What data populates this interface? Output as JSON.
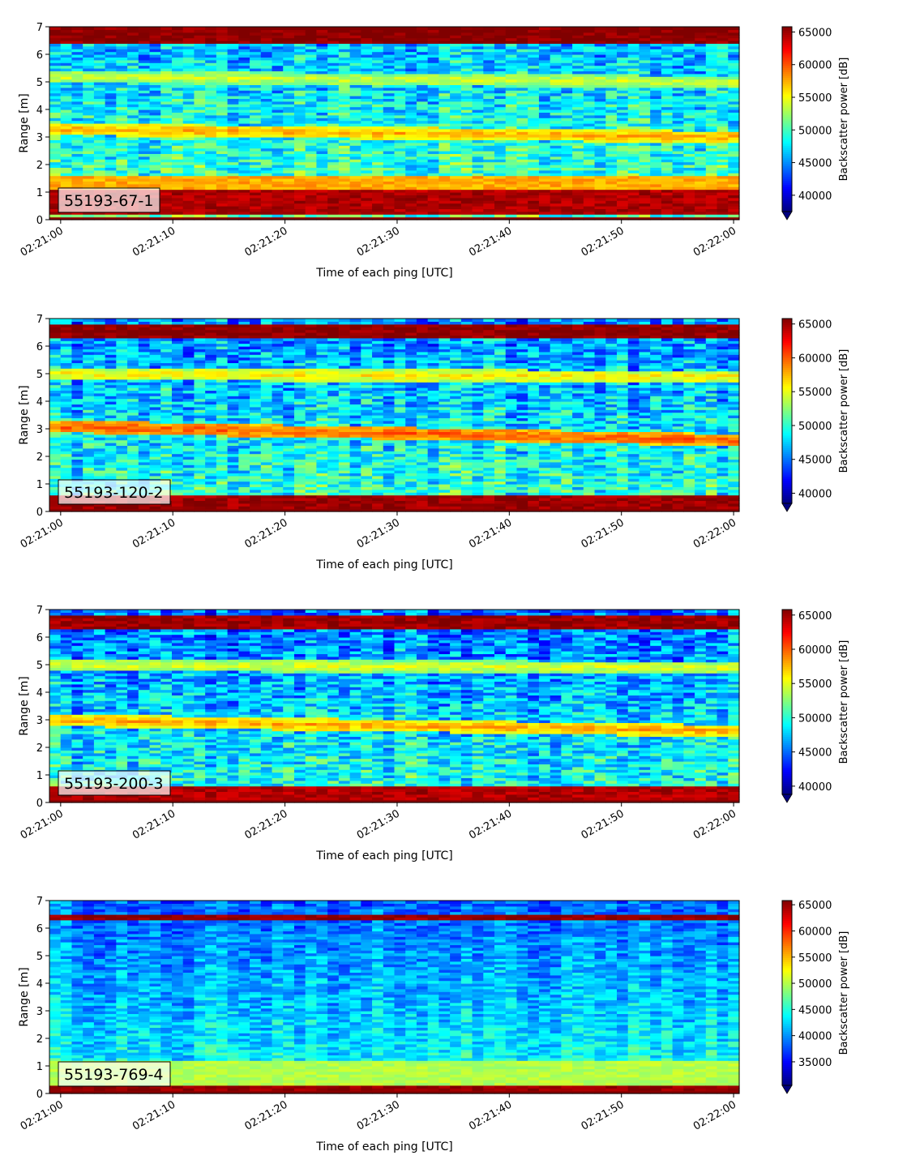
{
  "chart_data": [
    {
      "type": "heatmap",
      "tag": "55193-67-1",
      "xlabel": "Time of each ping [UTC]",
      "ylabel": "Range [m]",
      "x_ticks": [
        "02:21:00",
        "02:21:10",
        "02:21:20",
        "02:21:30",
        "02:21:40",
        "02:21:50",
        "02:22:00"
      ],
      "x_range_seconds": [
        -1,
        60.5
      ],
      "y_ticks": [
        0,
        1,
        2,
        3,
        4,
        5,
        6,
        7
      ],
      "ylim": [
        0,
        7
      ],
      "colorbar": {
        "label": "Backscatter power [dB]",
        "ticks": [
          40000,
          45000,
          50000,
          55000,
          60000,
          65000
        ],
        "range": [
          37500,
          65800
        ],
        "extend": "min"
      },
      "colormap": "jet",
      "features": [
        {
          "kind": "band",
          "range_m": [
            0.25,
            1.1
          ],
          "value": 64500
        },
        {
          "kind": "band",
          "range_m": [
            1.1,
            1.6
          ],
          "value": 57500
        },
        {
          "kind": "band",
          "range_m": [
            6.4,
            7.0
          ],
          "value": 65500
        },
        {
          "kind": "layer",
          "range_m_start": 3.3,
          "range_m_end": 3.0,
          "value": 57500
        },
        {
          "kind": "layer",
          "range_m_start": 5.2,
          "range_m_end": 5.0,
          "value": 54000
        }
      ]
    },
    {
      "type": "heatmap",
      "tag": "55193-120-2",
      "xlabel": "Time of each ping [UTC]",
      "ylabel": "Range [m]",
      "x_ticks": [
        "02:21:00",
        "02:21:10",
        "02:21:20",
        "02:21:30",
        "02:21:40",
        "02:21:50",
        "02:22:00"
      ],
      "x_range_seconds": [
        -1,
        60.5
      ],
      "y_ticks": [
        0,
        1,
        2,
        3,
        4,
        5,
        6,
        7
      ],
      "ylim": [
        0,
        7
      ],
      "colorbar": {
        "label": "Backscatter power [dB]",
        "ticks": [
          40000,
          45000,
          50000,
          55000,
          60000,
          65000
        ],
        "range": [
          38500,
          65800
        ],
        "extend": "min"
      },
      "colormap": "jet",
      "features": [
        {
          "kind": "band",
          "range_m": [
            0.15,
            0.6
          ],
          "value": 65000
        },
        {
          "kind": "band",
          "range_m": [
            6.3,
            6.8
          ],
          "value": 65500
        },
        {
          "kind": "layer",
          "range_m_start": 3.1,
          "range_m_end": 2.6,
          "value": 60000
        },
        {
          "kind": "layer",
          "range_m_start": 5.0,
          "range_m_end": 4.9,
          "value": 56000
        }
      ]
    },
    {
      "type": "heatmap",
      "tag": "55193-200-3",
      "xlabel": "Time of each ping [UTC]",
      "ylabel": "Range [m]",
      "x_ticks": [
        "02:21:00",
        "02:21:10",
        "02:21:20",
        "02:21:30",
        "02:21:40",
        "02:21:50",
        "02:22:00"
      ],
      "x_range_seconds": [
        -1,
        60.5
      ],
      "y_ticks": [
        0,
        1,
        2,
        3,
        4,
        5,
        6,
        7
      ],
      "ylim": [
        0,
        7
      ],
      "colorbar": {
        "label": "Backscatter power [dB]",
        "ticks": [
          40000,
          45000,
          50000,
          55000,
          60000,
          65000
        ],
        "range": [
          38800,
          65800
        ],
        "extend": "min"
      },
      "colormap": "jet",
      "features": [
        {
          "kind": "band",
          "range_m": [
            0.15,
            0.55
          ],
          "value": 64500
        },
        {
          "kind": "band",
          "range_m": [
            6.3,
            6.8
          ],
          "value": 65000
        },
        {
          "kind": "layer",
          "range_m_start": 3.0,
          "range_m_end": 2.6,
          "value": 58000
        },
        {
          "kind": "layer",
          "range_m_start": 5.0,
          "range_m_end": 4.9,
          "value": 55000
        }
      ]
    },
    {
      "type": "heatmap",
      "tag": "55193-769-4",
      "xlabel": "Time of each ping [UTC]",
      "ylabel": "Range [m]",
      "x_ticks": [
        "02:21:00",
        "02:21:10",
        "02:21:20",
        "02:21:30",
        "02:21:40",
        "02:21:50",
        "02:22:00"
      ],
      "x_range_seconds": [
        -1,
        60.5
      ],
      "y_ticks": [
        0,
        1,
        2,
        3,
        4,
        5,
        6,
        7
      ],
      "ylim": [
        0,
        7
      ],
      "colorbar": {
        "label": "Backscatter power [dB]",
        "ticks": [
          35000,
          40000,
          45000,
          50000,
          55000,
          60000,
          65000
        ],
        "range": [
          30500,
          65800
        ],
        "extend": "min"
      },
      "colormap": "jet",
      "features": [
        {
          "kind": "band",
          "range_m": [
            0.15,
            0.35
          ],
          "value": 65000
        },
        {
          "kind": "band",
          "range_m": [
            6.3,
            6.5
          ],
          "value": 65000
        },
        {
          "kind": "band",
          "range_m": [
            0.35,
            1.2
          ],
          "value": 50000
        }
      ]
    }
  ]
}
